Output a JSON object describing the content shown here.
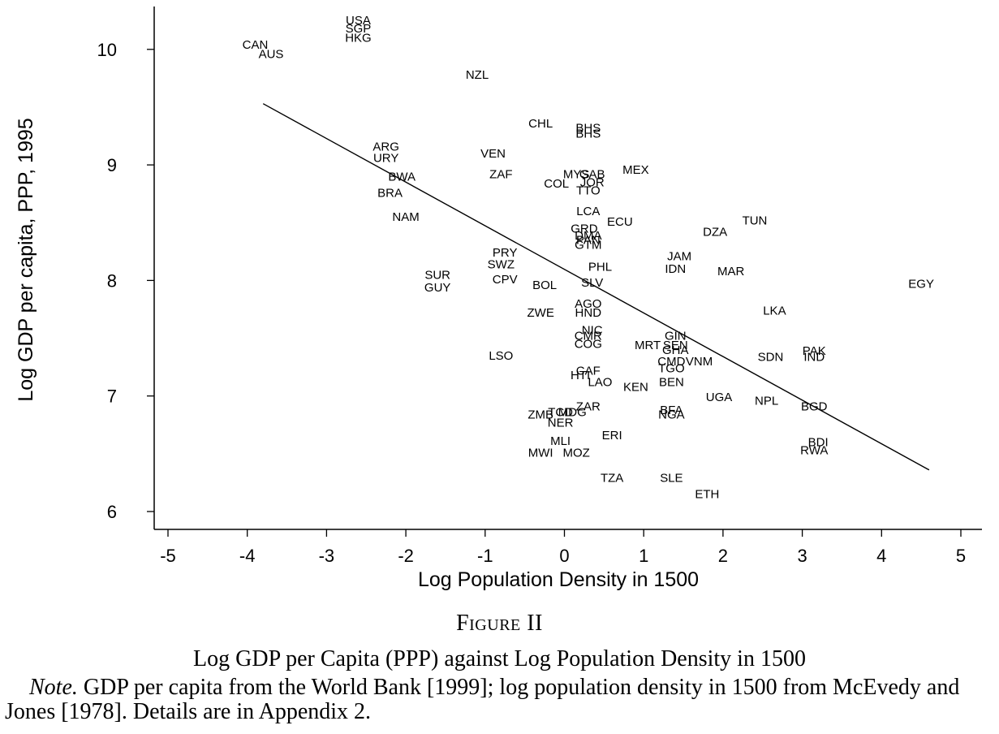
{
  "chart_data": {
    "type": "scatter",
    "xlabel": "Log Population Density in 1500",
    "ylabel": "Log GDP per capita, PPP, 1995",
    "xlim": [
      -5,
      5
    ],
    "ylim": [
      6,
      10.4
    ],
    "x_ticks": [
      -5,
      -4,
      -3,
      -2,
      -1,
      0,
      1,
      2,
      3,
      4,
      5
    ],
    "y_ticks": [
      6,
      7,
      8,
      9,
      10
    ],
    "grid": false,
    "fit_line": {
      "x": [
        -3.8,
        4.6
      ],
      "y": [
        9.53,
        6.36
      ]
    },
    "points": [
      {
        "label": "USA",
        "x": -2.6,
        "y": 10.25
      },
      {
        "label": "SGP",
        "x": -2.6,
        "y": 10.18
      },
      {
        "label": "HKG",
        "x": -2.6,
        "y": 10.1
      },
      {
        "label": "CAN",
        "x": -3.9,
        "y": 10.04
      },
      {
        "label": "AUS",
        "x": -3.7,
        "y": 9.96
      },
      {
        "label": "NZL",
        "x": -1.1,
        "y": 9.78
      },
      {
        "label": "CHL",
        "x": -0.3,
        "y": 9.36
      },
      {
        "label": "BHS",
        "x": 0.3,
        "y": 9.32
      },
      {
        "label": "BHS",
        "x": 0.3,
        "y": 9.27
      },
      {
        "label": "ARG",
        "x": -2.25,
        "y": 9.16
      },
      {
        "label": "URY",
        "x": -2.25,
        "y": 9.06
      },
      {
        "label": "VEN",
        "x": -0.9,
        "y": 9.1
      },
      {
        "label": "MEX",
        "x": 0.9,
        "y": 8.96
      },
      {
        "label": "ZAF",
        "x": -0.8,
        "y": 8.92
      },
      {
        "label": "MYS",
        "x": 0.15,
        "y": 8.92
      },
      {
        "label": "GAB",
        "x": 0.35,
        "y": 8.92
      },
      {
        "label": "JOR",
        "x": 0.35,
        "y": 8.85
      },
      {
        "label": "COL",
        "x": -0.1,
        "y": 8.84
      },
      {
        "label": "TTO",
        "x": 0.3,
        "y": 8.78
      },
      {
        "label": "BWA",
        "x": -2.05,
        "y": 8.9
      },
      {
        "label": "BRA",
        "x": -2.2,
        "y": 8.76
      },
      {
        "label": "NAM",
        "x": -2.0,
        "y": 8.55
      },
      {
        "label": "LCA",
        "x": 0.3,
        "y": 8.6
      },
      {
        "label": "ECU",
        "x": 0.7,
        "y": 8.51
      },
      {
        "label": "TUN",
        "x": 2.4,
        "y": 8.52
      },
      {
        "label": "DZA",
        "x": 1.9,
        "y": 8.42
      },
      {
        "label": "GRD",
        "x": 0.25,
        "y": 8.45
      },
      {
        "label": "DMA",
        "x": 0.3,
        "y": 8.39
      },
      {
        "label": "PAN",
        "x": 0.3,
        "y": 8.35
      },
      {
        "label": "GTM",
        "x": 0.3,
        "y": 8.31
      },
      {
        "label": "PRY",
        "x": -0.75,
        "y": 8.24
      },
      {
        "label": "SWZ",
        "x": -0.8,
        "y": 8.14
      },
      {
        "label": "JAM",
        "x": 1.45,
        "y": 8.21
      },
      {
        "label": "PHL",
        "x": 0.45,
        "y": 8.12
      },
      {
        "label": "IDN",
        "x": 1.4,
        "y": 8.1
      },
      {
        "label": "MAR",
        "x": 2.1,
        "y": 8.08
      },
      {
        "label": "SUR",
        "x": -1.6,
        "y": 8.05
      },
      {
        "label": "CPV",
        "x": -0.75,
        "y": 8.01
      },
      {
        "label": "GUY",
        "x": -1.6,
        "y": 7.94
      },
      {
        "label": "BOL",
        "x": -0.25,
        "y": 7.96
      },
      {
        "label": "SLV",
        "x": 0.35,
        "y": 7.98
      },
      {
        "label": "EGY",
        "x": 4.5,
        "y": 7.97
      },
      {
        "label": "AGO",
        "x": 0.3,
        "y": 7.8
      },
      {
        "label": "ZWE",
        "x": -0.3,
        "y": 7.72
      },
      {
        "label": "HND",
        "x": 0.3,
        "y": 7.72
      },
      {
        "label": "LKA",
        "x": 2.65,
        "y": 7.74
      },
      {
        "label": "NIC",
        "x": 0.35,
        "y": 7.57
      },
      {
        "label": "CMR",
        "x": 0.3,
        "y": 7.52
      },
      {
        "label": "COG",
        "x": 0.3,
        "y": 7.45
      },
      {
        "label": "GIN",
        "x": 1.4,
        "y": 7.52
      },
      {
        "label": "MRT",
        "x": 1.05,
        "y": 7.44
      },
      {
        "label": "SEN",
        "x": 1.4,
        "y": 7.44
      },
      {
        "label": "GHA",
        "x": 1.4,
        "y": 7.4
      },
      {
        "label": "LSO",
        "x": -0.8,
        "y": 7.35
      },
      {
        "label": "CMD",
        "x": 1.35,
        "y": 7.3
      },
      {
        "label": "VNM",
        "x": 1.7,
        "y": 7.3
      },
      {
        "label": "SDN",
        "x": 2.6,
        "y": 7.34
      },
      {
        "label": "PAK",
        "x": 3.15,
        "y": 7.39
      },
      {
        "label": "IND",
        "x": 3.15,
        "y": 7.34
      },
      {
        "label": "TGO",
        "x": 1.35,
        "y": 7.24
      },
      {
        "label": "CAF",
        "x": 0.3,
        "y": 7.22
      },
      {
        "label": "HTI",
        "x": 0.2,
        "y": 7.18
      },
      {
        "label": "BEN",
        "x": 1.35,
        "y": 7.12
      },
      {
        "label": "LAO",
        "x": 0.45,
        "y": 7.12
      },
      {
        "label": "KEN",
        "x": 0.9,
        "y": 7.08
      },
      {
        "label": "UGA",
        "x": 1.95,
        "y": 6.99
      },
      {
        "label": "NPL",
        "x": 2.55,
        "y": 6.96
      },
      {
        "label": "BGD",
        "x": 3.15,
        "y": 6.91
      },
      {
        "label": "ZAR",
        "x": 0.3,
        "y": 6.91
      },
      {
        "label": "BFA",
        "x": 1.35,
        "y": 6.88
      },
      {
        "label": "NGA",
        "x": 1.35,
        "y": 6.84
      },
      {
        "label": "ZMB",
        "x": -0.3,
        "y": 6.84
      },
      {
        "label": "TCD",
        "x": -0.05,
        "y": 6.86
      },
      {
        "label": "MDG",
        "x": 0.1,
        "y": 6.86
      },
      {
        "label": "NER",
        "x": -0.05,
        "y": 6.77
      },
      {
        "label": "ERI",
        "x": 0.6,
        "y": 6.66
      },
      {
        "label": "MLI",
        "x": -0.05,
        "y": 6.61
      },
      {
        "label": "BDI",
        "x": 3.2,
        "y": 6.6
      },
      {
        "label": "MWI",
        "x": -0.3,
        "y": 6.51
      },
      {
        "label": "MOZ",
        "x": 0.15,
        "y": 6.51
      },
      {
        "label": "RWA",
        "x": 3.15,
        "y": 6.53
      },
      {
        "label": "TZA",
        "x": 0.6,
        "y": 6.29
      },
      {
        "label": "SLE",
        "x": 1.35,
        "y": 6.29
      },
      {
        "label": "ETH",
        "x": 1.8,
        "y": 6.15
      }
    ]
  },
  "caption": {
    "figure_number": "Figure II",
    "title": "Log GDP per Capita (PPP) against Log Population Density in 1500",
    "note_label": "Note.",
    "note_text": " GDP per capita from the World Bank [1999]; log population density in 1500 from McEvedy and Jones [1978]. Details are in Appendix 2."
  }
}
